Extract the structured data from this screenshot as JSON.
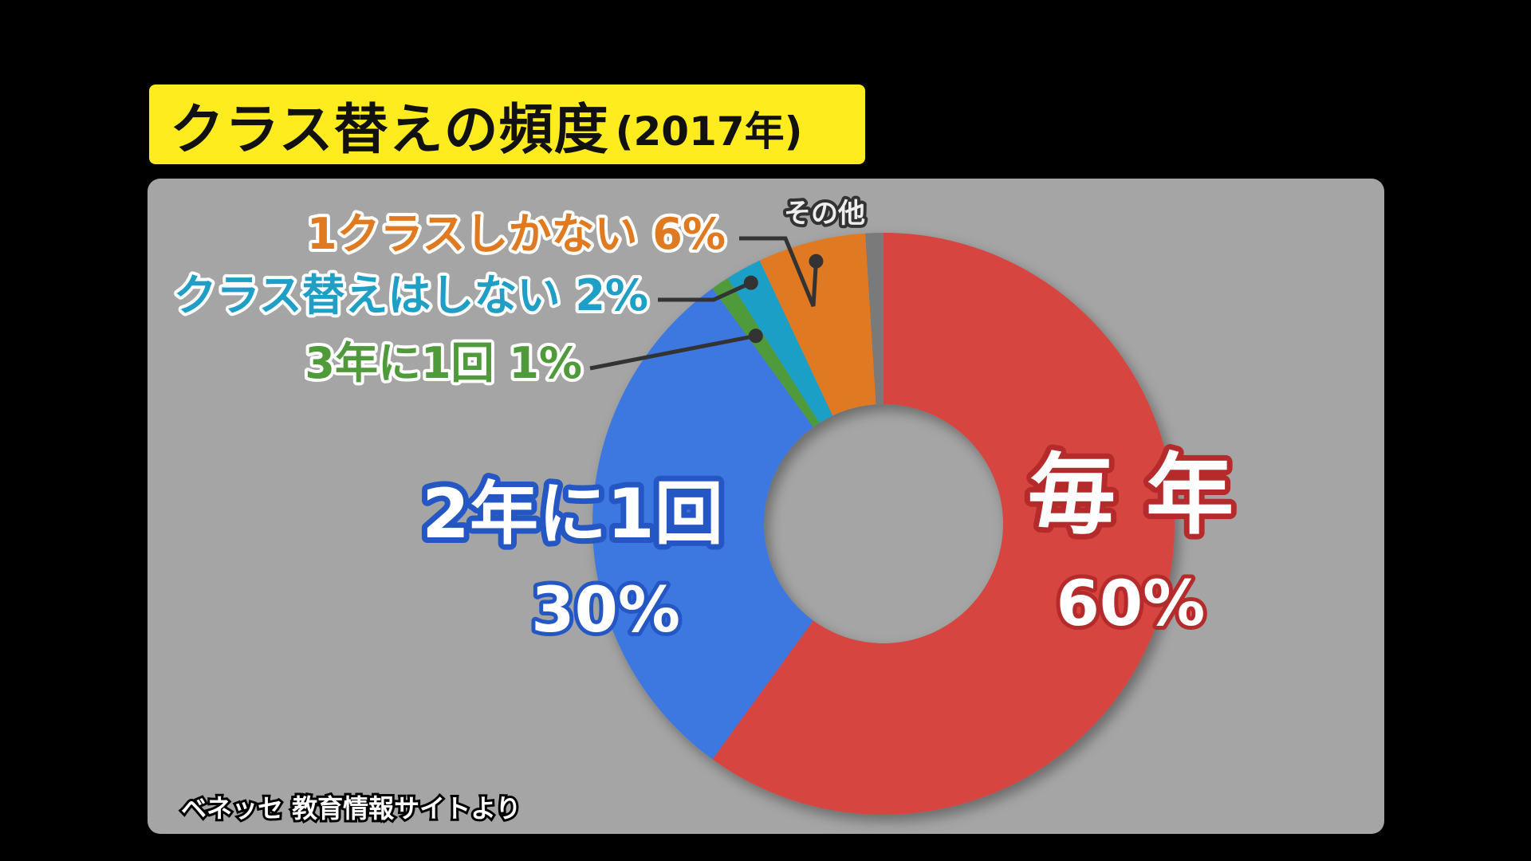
{
  "title": {
    "main": "クラス替えの頻度",
    "sub": "(2017年)"
  },
  "source_note": "ベネッセ 教育情報サイトより",
  "colors": {
    "background": "#000000",
    "panel": "#a5a5a5",
    "title_bg": "#ffec1f"
  },
  "chart_data": {
    "type": "pie",
    "variant": "donut",
    "start": "12 o'clock",
    "direction": "clockwise",
    "slices": [
      {
        "label": "毎 年",
        "value": 60,
        "value_label": "60%",
        "color": "#d64541"
      },
      {
        "label": "2年に1回",
        "value": 30,
        "value_label": "30%",
        "color": "#3c78e0"
      },
      {
        "label": "3年に1回",
        "value": 1,
        "value_label": "1%",
        "color": "#4f9a3a",
        "callout": "3年に1回 1%"
      },
      {
        "label": "クラス替えはしない",
        "value": 2,
        "value_label": "2%",
        "color": "#1f9fc6",
        "callout": "クラス替えはしない 2%"
      },
      {
        "label": "1クラスしかない",
        "value": 6,
        "value_label": "6%",
        "color": "#e07a20",
        "callout": "1クラスしかない 6%"
      },
      {
        "label": "その他",
        "value": 1,
        "value_label": "",
        "color": "#7a7a7a",
        "callout": "その他"
      }
    ]
  }
}
